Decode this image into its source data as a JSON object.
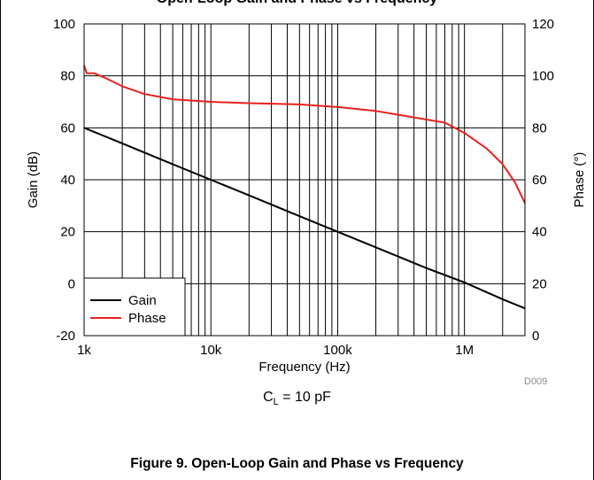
{
  "header_cut_text": "Open-Loop Gain and Phase vs Frequency",
  "chart_data": {
    "type": "line",
    "title": "",
    "xlabel": "Frequency (Hz)",
    "ylabel": "Gain (dB)",
    "y2label": "Phase (°)",
    "xscale": "log",
    "xlim": [
      1000,
      3000000
    ],
    "ylim": [
      -20,
      100
    ],
    "y2lim": [
      0,
      120
    ],
    "xticks": [
      {
        "value": 1000,
        "label": "1k"
      },
      {
        "value": 10000,
        "label": "10k"
      },
      {
        "value": 100000,
        "label": "100k"
      },
      {
        "value": 1000000,
        "label": "1M"
      }
    ],
    "yticks": [
      -20,
      0,
      20,
      40,
      60,
      80,
      100
    ],
    "y2ticks": [
      0,
      20,
      40,
      60,
      80,
      100,
      120
    ],
    "grid": true,
    "legend_position": "bottom-left",
    "series": [
      {
        "name": "Gain",
        "axis": "left",
        "color": "#000000",
        "x": [
          1000,
          2000,
          5000,
          10000,
          20000,
          50000,
          100000,
          200000,
          500000,
          1000000,
          2000000,
          3000000
        ],
        "y": [
          60,
          54,
          46,
          40,
          34,
          26,
          20,
          14,
          6,
          0.5,
          -6,
          -9.5
        ]
      },
      {
        "name": "Phase",
        "axis": "right",
        "color": "#e8211d",
        "x": [
          1000,
          1050,
          1200,
          1500,
          2000,
          3000,
          5000,
          10000,
          20000,
          50000,
          100000,
          200000,
          400000,
          700000,
          1000000,
          1500000,
          2000000,
          2500000,
          3000000
        ],
        "y": [
          104,
          101,
          101,
          99,
          96,
          93,
          91,
          90,
          89.5,
          89,
          88,
          86.5,
          84,
          82,
          78,
          72,
          66,
          59,
          51
        ]
      }
    ]
  },
  "watermark": "D009",
  "condition_label": {
    "prefix": "C",
    "subscript": "L",
    "suffix": " = 10 pF"
  },
  "caption": "Figure 9. Open-Loop Gain and Phase vs Frequency"
}
